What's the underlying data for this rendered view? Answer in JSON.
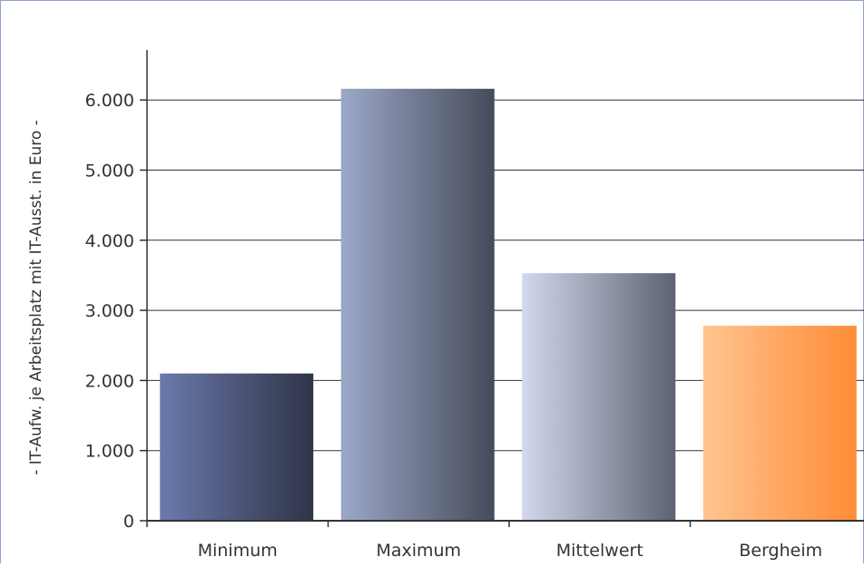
{
  "chart_data": {
    "type": "bar",
    "title": "",
    "xlabel": "",
    "ylabel": "- IT-Aufw. je Arbeitsplatz mit IT-Ausst. in Euro -",
    "categories": [
      "Minimum",
      "Maximum",
      "Mittelwert",
      "Bergheim"
    ],
    "values": [
      2100,
      6160,
      3530,
      2780
    ],
    "ylim": [
      0,
      6000
    ],
    "yticks": [
      "0",
      "1.000",
      "2.000",
      "3.000",
      "4.000",
      "5.000",
      "6.000"
    ],
    "grid": true,
    "legend": "none",
    "bar_gradients": [
      [
        "#6b79ac",
        "#2f3447"
      ],
      [
        "#9ba8c8",
        "#464b5a"
      ],
      [
        "#d3d8ee",
        "#5d6272"
      ],
      [
        "#ffc48f",
        "#ff8c36"
      ]
    ],
    "colors": {
      "frame": "#8ea2c6",
      "grid": "#333333",
      "axis": "#333333",
      "text": "#333333"
    }
  }
}
